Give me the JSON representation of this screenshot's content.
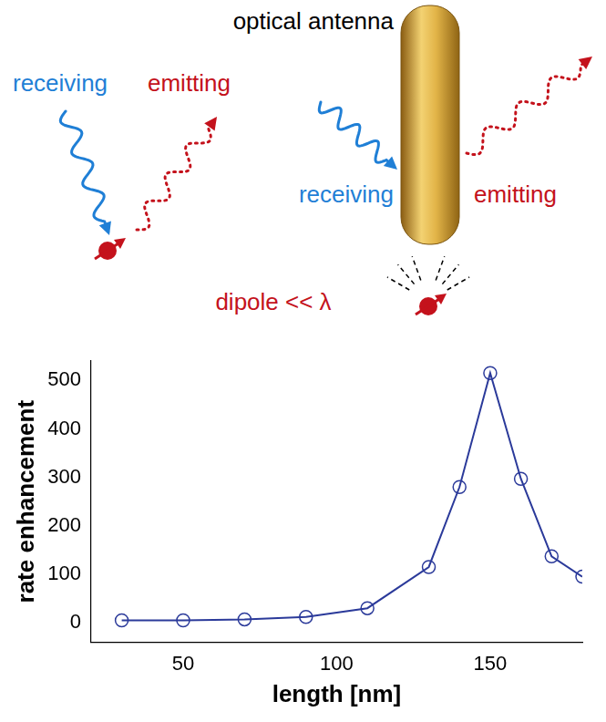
{
  "chart_data": {
    "type": "line",
    "x": [
      30,
      50,
      70,
      90,
      110,
      130,
      140,
      150,
      160,
      170,
      180
    ],
    "values": [
      5,
      5,
      7,
      12,
      30,
      115,
      280,
      515,
      297,
      137,
      95
    ],
    "color": "#2b3a9a",
    "marker": "circle",
    "line_style": "solid",
    "x_label": "length [nm]",
    "y_label": "rate enhancement",
    "xlim": [
      20,
      180
    ],
    "xticks": [
      50,
      100,
      150
    ],
    "ylim": [
      -40,
      540
    ],
    "yticks": [
      0,
      100,
      200,
      300,
      400,
      500
    ],
    "grid": false
  },
  "diagram": {
    "antenna_label": "optical antenna",
    "free_dipole": {
      "receiving": "receiving",
      "emitting": "emitting"
    },
    "antenna_dipole": {
      "receiving": "receiving",
      "emitting": "emitting"
    },
    "dipole_note": "dipole << λ"
  }
}
